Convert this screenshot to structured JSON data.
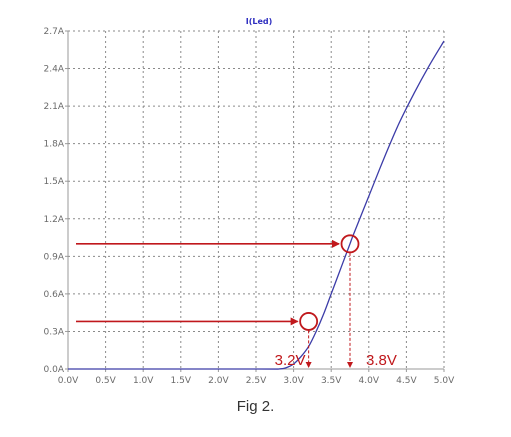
{
  "chart_data": {
    "type": "line",
    "title": "I(Led)",
    "xlabel": "",
    "ylabel": "",
    "xlim": [
      0,
      5.0
    ],
    "ylim": [
      0,
      2.7
    ],
    "x_ticks": [
      "0.0V",
      "0.5V",
      "1.0V",
      "1.5V",
      "2.0V",
      "2.5V",
      "3.0V",
      "3.5V",
      "4.0V",
      "4.5V",
      "5.0V"
    ],
    "y_ticks": [
      "0.0A",
      "0.3A",
      "0.6A",
      "0.9A",
      "1.2A",
      "1.5A",
      "1.8A",
      "2.1A",
      "2.4A",
      "2.7A"
    ],
    "grid": true,
    "series": [
      {
        "name": "I(Led)",
        "color": "#3c3ca8",
        "x": [
          0,
          2.5,
          2.8,
          2.9,
          3.0,
          3.1,
          3.2,
          3.3,
          3.4,
          3.5,
          3.6,
          3.7,
          3.75,
          3.8,
          4.0,
          4.2,
          4.4,
          4.6,
          4.8,
          5.0
        ],
        "y": [
          0,
          0,
          0.0,
          0.01,
          0.04,
          0.1,
          0.18,
          0.3,
          0.44,
          0.6,
          0.76,
          0.92,
          1.0,
          1.08,
          1.38,
          1.68,
          1.96,
          2.2,
          2.42,
          2.62
        ]
      }
    ],
    "annotations": [
      {
        "x": 3.2,
        "y": 0.38,
        "label": "3.2V"
      },
      {
        "x": 3.75,
        "y": 1.0,
        "label": "3.8V"
      }
    ],
    "colors": {
      "annotation": "#c0181c",
      "line": "#3c3ca8",
      "title": "#3030c0",
      "grid": "#8a8a8a",
      "axis": "#9a9a9a"
    }
  },
  "caption": "Fig 2."
}
